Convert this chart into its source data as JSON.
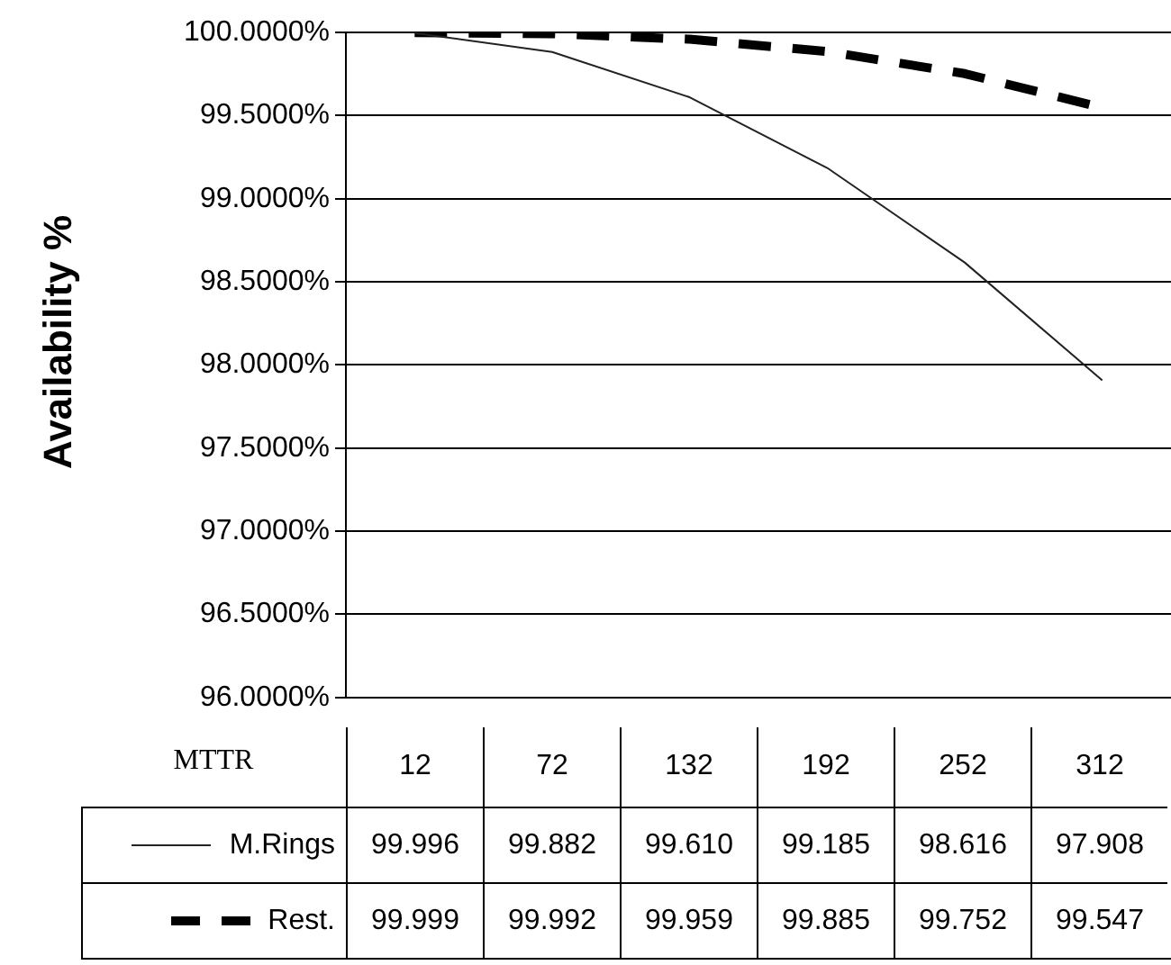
{
  "chart_data": {
    "type": "line",
    "ylabel": "Availability %",
    "xlabel": "MTTR",
    "categories": [
      "12",
      "72",
      "132",
      "192",
      "252",
      "312"
    ],
    "series": [
      {
        "name": "M.Rings",
        "color": "#222222",
        "line_style": "solid",
        "values": [
          99.996,
          99.882,
          99.61,
          99.185,
          98.616,
          97.908
        ],
        "value_labels": [
          "99.996",
          "99.882",
          "99.610",
          "99.185",
          "98.616",
          "97.908"
        ]
      },
      {
        "name": "Rest.",
        "color": "#000000",
        "line_style": "dashed",
        "values": [
          99.999,
          99.992,
          99.959,
          99.885,
          99.752,
          99.547
        ],
        "value_labels": [
          "99.999",
          "99.992",
          "99.959",
          "99.885",
          "99.752",
          "99.547"
        ]
      }
    ],
    "ylim": [
      96,
      100
    ],
    "yticks": [
      {
        "value": 96,
        "label": "96.0000%"
      },
      {
        "value": 96.5,
        "label": "96.5000%"
      },
      {
        "value": 97,
        "label": "97.0000%"
      },
      {
        "value": 97.5,
        "label": "97.5000%"
      },
      {
        "value": 98,
        "label": "98.0000%"
      },
      {
        "value": 98.5,
        "label": "98.5000%"
      },
      {
        "value": 99,
        "label": "99.0000%"
      },
      {
        "value": 99.5,
        "label": "99.5000%"
      },
      {
        "value": 100,
        "label": "100.0000%"
      }
    ],
    "grid": "y",
    "legend": "bottom",
    "marker": "none"
  }
}
